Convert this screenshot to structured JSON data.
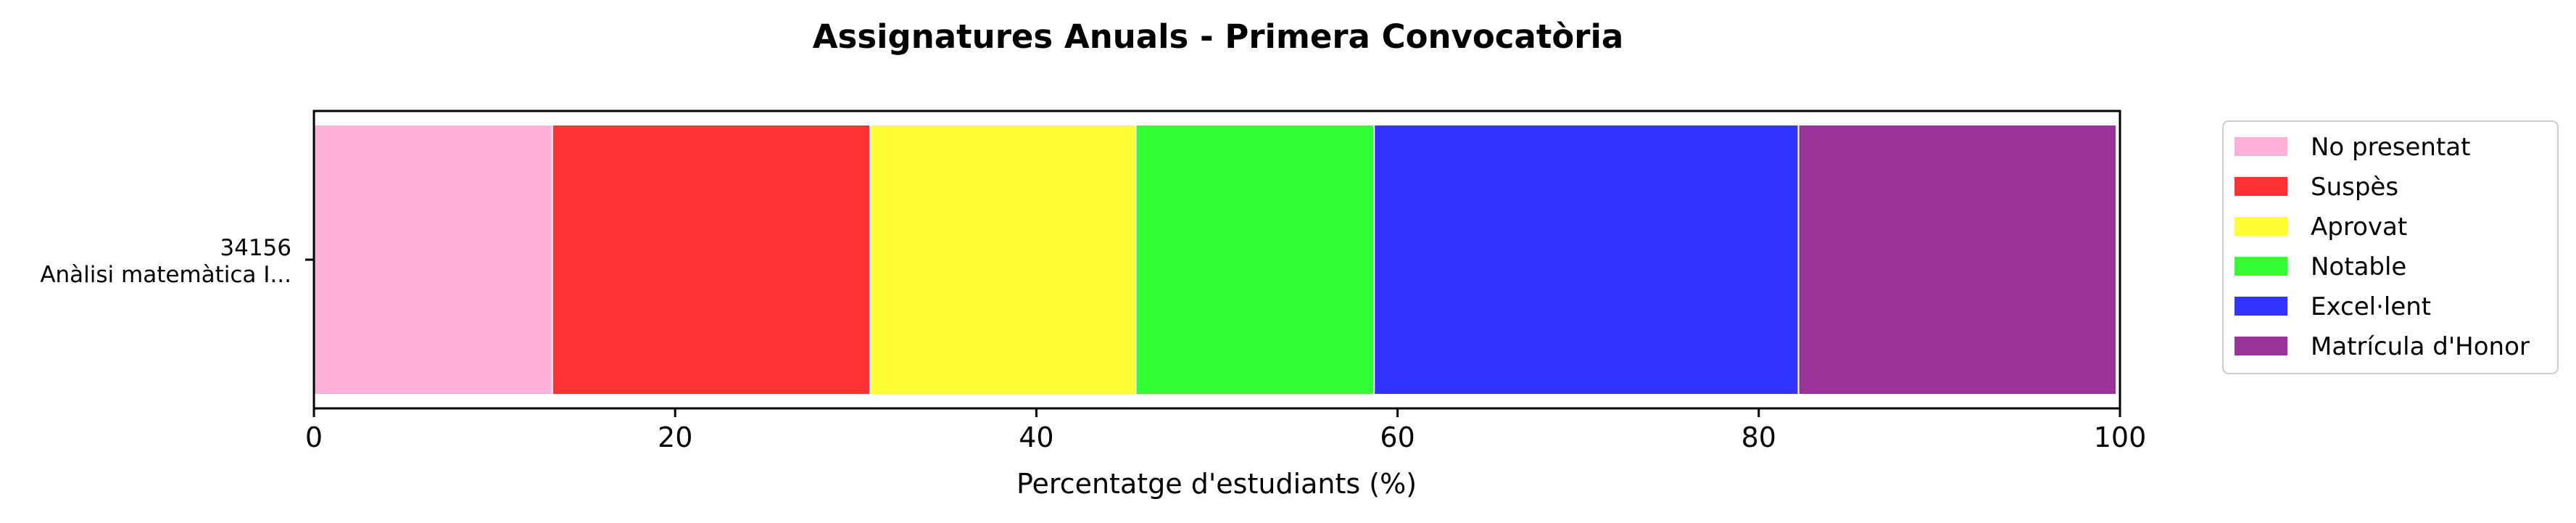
{
  "chart_data": {
    "type": "bar",
    "orientation": "horizontal",
    "stacked": true,
    "title": "Assignatures Anuals - Primera Convocatòria",
    "xlabel": "Percentatge d'estudiants (%)",
    "ylabel": "",
    "xlim": [
      0,
      100
    ],
    "xticks": [
      0,
      20,
      40,
      60,
      80,
      100
    ],
    "grid": false,
    "legend_position": "outside-right-top",
    "categories": [
      {
        "code": "34156",
        "name": "Anàlisi matemàtica I..."
      }
    ],
    "series": [
      {
        "name": "No presentat",
        "color": "#ffb0d8",
        "values": [
          13.2
        ]
      },
      {
        "name": "Suspès",
        "color": "#ff3333",
        "values": [
          17.6
        ]
      },
      {
        "name": "Aprovat",
        "color": "#ffff33",
        "values": [
          14.7
        ]
      },
      {
        "name": "Notable",
        "color": "#33ff33",
        "values": [
          13.2
        ]
      },
      {
        "name": "Excel·lent",
        "color": "#3333ff",
        "values": [
          23.5
        ]
      },
      {
        "name": "Matrícula d'Honor",
        "color": "#993399",
        "values": [
          17.6
        ]
      }
    ]
  }
}
